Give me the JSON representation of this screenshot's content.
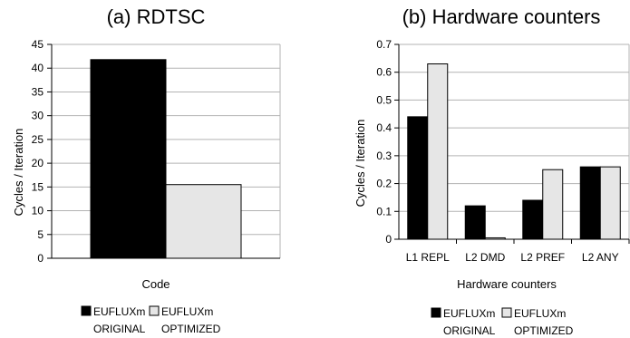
{
  "colors": {
    "original": "#000000",
    "optimized": "#e6e6e6",
    "grid": "#b3b3b3",
    "axis": "#000000"
  },
  "chart_data": [
    {
      "type": "bar",
      "title": "(a) RDTSC",
      "xlabel": "Code",
      "ylabel": "Cycles / Iteration",
      "categories": [
        ""
      ],
      "series": [
        {
          "name": "EUFLUXm ORIGINAL",
          "values": [
            41.8
          ]
        },
        {
          "name": "EUFLUXm OPTIMIZED",
          "values": [
            15.5
          ]
        }
      ],
      "ylim": [
        0,
        45
      ],
      "yticks": [
        0,
        5,
        10,
        15,
        20,
        25,
        30,
        35,
        40,
        45
      ],
      "grid": true,
      "legend": "bottom"
    },
    {
      "type": "bar",
      "title": "(b) Hardware counters",
      "xlabel": "Hardware counters",
      "ylabel": "Cycles / Iteration",
      "categories": [
        "L1 REPL",
        "L2 DMD",
        "L2 PREF",
        "L2 ANY"
      ],
      "series": [
        {
          "name": "EUFLUXm ORIGINAL",
          "values": [
            0.44,
            0.12,
            0.14,
            0.26
          ]
        },
        {
          "name": "EUFLUXm OPTIMIZED",
          "values": [
            0.63,
            0.005,
            0.25,
            0.26
          ]
        }
      ],
      "ylim": [
        0,
        0.7
      ],
      "yticks": [
        "0",
        "0.1",
        "0.2",
        "0.3",
        "0.4",
        "0.5",
        "0.6",
        "0.7"
      ],
      "grid": true,
      "legend": "bottom"
    }
  ],
  "legend_items": [
    {
      "line1": "EUFLUXm",
      "line2": "ORIGINAL"
    },
    {
      "line1": "EUFLUXm",
      "line2": "OPTIMIZED"
    }
  ]
}
